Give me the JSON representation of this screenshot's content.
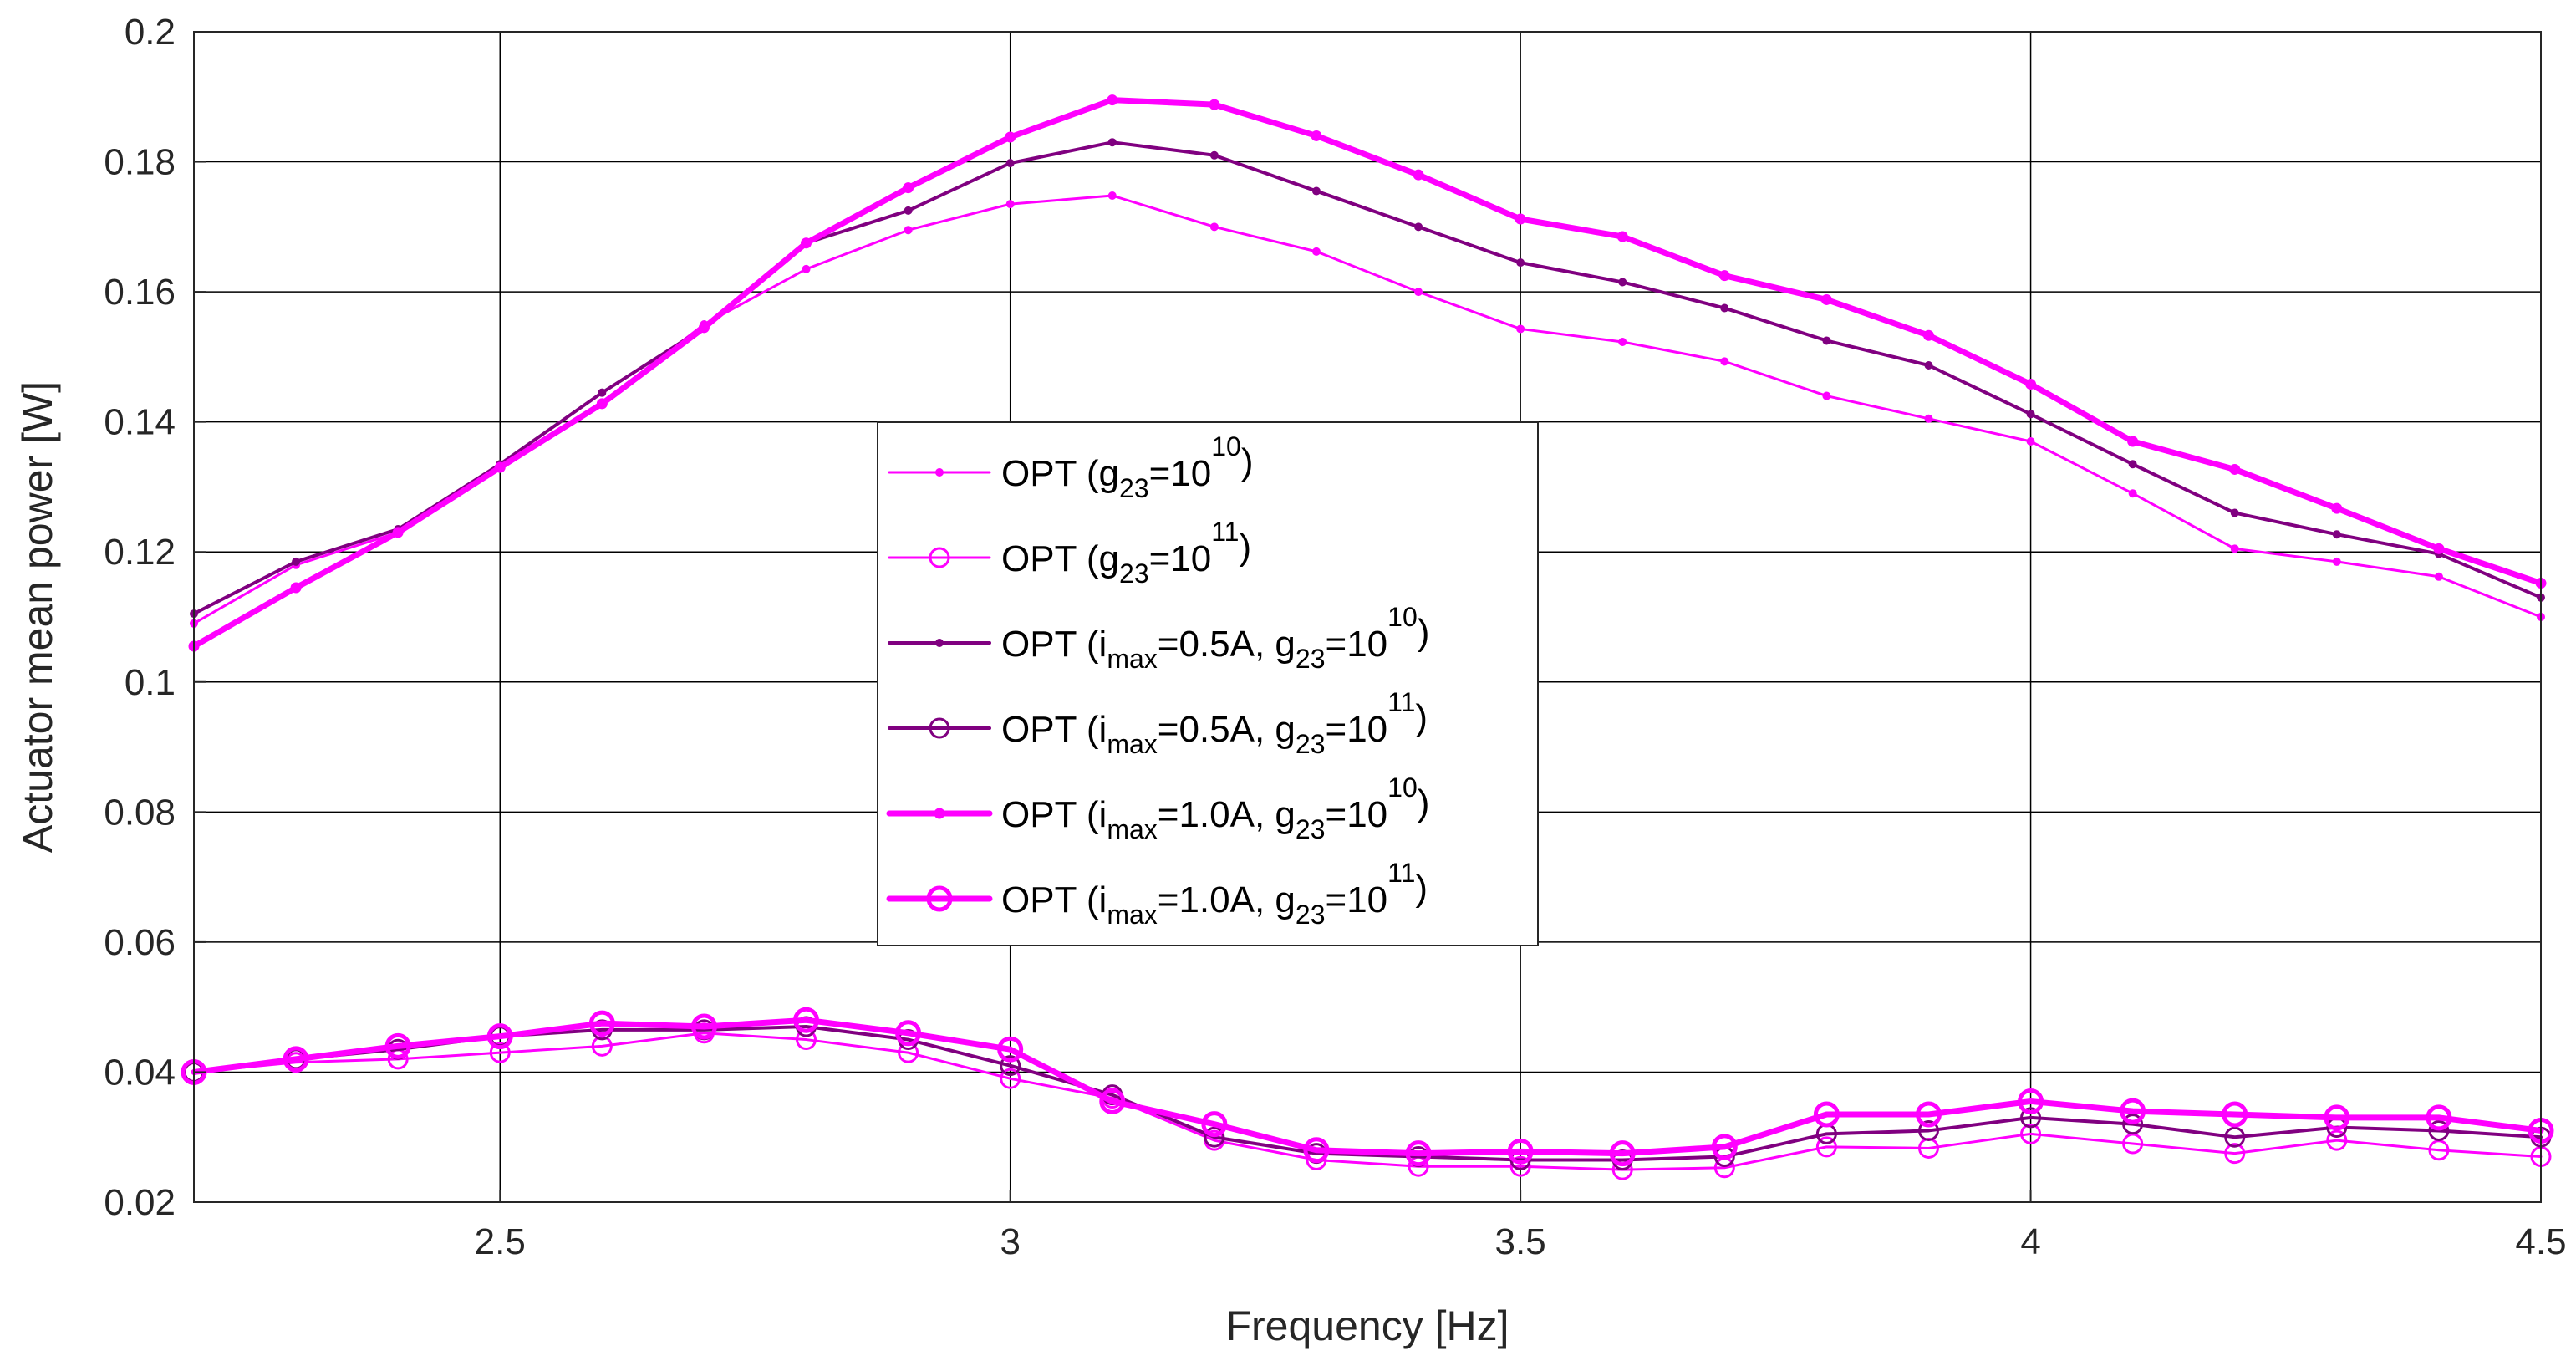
{
  "chart_data": {
    "type": "line",
    "title": "",
    "xlabel": "Frequency [Hz]",
    "ylabel": "Actuator mean power [W]",
    "xlim": [
      2.2,
      4.5
    ],
    "ylim": [
      0.02,
      0.2
    ],
    "grid": true,
    "legend_position": "center",
    "x": [
      2.2,
      2.3,
      2.4,
      2.5,
      2.6,
      2.7,
      2.8,
      2.9,
      3.0,
      3.1,
      3.2,
      3.3,
      3.4,
      3.5,
      3.6,
      3.7,
      3.8,
      3.9,
      4.0,
      4.1,
      4.2,
      4.3,
      4.4,
      4.5
    ],
    "xticks": [
      {
        "value": 2.5,
        "label": "2.5"
      },
      {
        "value": 3,
        "label": "3"
      },
      {
        "value": 3.5,
        "label": "3.5"
      },
      {
        "value": 4,
        "label": "4"
      },
      {
        "value": 4.5,
        "label": "4.5"
      }
    ],
    "yticks": [
      {
        "value": 0.02,
        "label": "0.02"
      },
      {
        "value": 0.04,
        "label": "0.04"
      },
      {
        "value": 0.06,
        "label": "0.06"
      },
      {
        "value": 0.08,
        "label": "0.08"
      },
      {
        "value": 0.1,
        "label": "0.1"
      },
      {
        "value": 0.12,
        "label": "0.12"
      },
      {
        "value": 0.14,
        "label": "0.14"
      },
      {
        "value": 0.16,
        "label": "0.16"
      },
      {
        "value": 0.18,
        "label": "0.18"
      },
      {
        "value": 0.2,
        "label": "0.2"
      }
    ],
    "series": [
      {
        "name": "OPT (g23=10^10)",
        "legend": {
          "pre": "OPT (g",
          "sub1": "23",
          "mid": "=10",
          "sup": "10",
          "post": ")"
        },
        "color": "#ff00ff",
        "linewidth": 3,
        "marker": "dot",
        "values": [
          0.109,
          0.118,
          0.123,
          0.133,
          0.143,
          0.155,
          0.1635,
          0.1695,
          0.1735,
          0.1748,
          0.17,
          0.1662,
          0.16,
          0.1543,
          0.1523,
          0.1493,
          0.144,
          0.1405,
          0.137,
          0.129,
          0.1205,
          0.1185,
          0.1162,
          0.11
        ]
      },
      {
        "name": "OPT (g23=10^11)",
        "legend": {
          "pre": "OPT (g",
          "sub1": "23",
          "mid": "=10",
          "sup": "11",
          "post": ")"
        },
        "color": "#ff00ff",
        "linewidth": 3,
        "marker": "circle",
        "values": [
          0.04,
          0.0415,
          0.042,
          0.043,
          0.044,
          0.046,
          0.045,
          0.043,
          0.039,
          0.036,
          0.0295,
          0.0265,
          0.0255,
          0.0255,
          0.025,
          0.0253,
          0.0285,
          0.0283,
          0.0305,
          0.029,
          0.0275,
          0.0295,
          0.028,
          0.027
        ]
      },
      {
        "name": "OPT (imax=0.5A, g23=10^10)",
        "legend": {
          "pre": "OPT (i",
          "sub1": "max",
          "mid": "=0.5A, g",
          "sub2": "23",
          "mid2": "=10",
          "sup": "10",
          "post": ")"
        },
        "color": "#800080",
        "linewidth": 4,
        "marker": "dot",
        "values": [
          0.1105,
          0.1185,
          0.1235,
          0.1335,
          0.1445,
          0.1545,
          0.1675,
          0.1725,
          0.1798,
          0.183,
          0.181,
          0.1755,
          0.17,
          0.1645,
          0.1615,
          0.1575,
          0.1525,
          0.1487,
          0.1412,
          0.1335,
          0.126,
          0.1227,
          0.1197,
          0.113
        ]
      },
      {
        "name": "OPT (imax=0.5A, g23=10^11)",
        "legend": {
          "pre": "OPT (i",
          "sub1": "max",
          "mid": "=0.5A, g",
          "sub2": "23",
          "mid2": "=10",
          "sup": "11",
          "post": ")"
        },
        "color": "#800080",
        "linewidth": 4,
        "marker": "circle",
        "values": [
          0.04,
          0.042,
          0.0435,
          0.0455,
          0.0465,
          0.0465,
          0.047,
          0.045,
          0.041,
          0.0365,
          0.03,
          0.0275,
          0.027,
          0.0265,
          0.0265,
          0.027,
          0.0305,
          0.031,
          0.033,
          0.032,
          0.03,
          0.0315,
          0.031,
          0.03
        ]
      },
      {
        "name": "OPT (imax=1.0A, g23=10^10)",
        "legend": {
          "pre": "OPT (i",
          "sub1": "max",
          "mid": "=1.0A, g",
          "sub2": "23",
          "mid2": "=10",
          "sup": "10",
          "post": ")"
        },
        "color": "#ff00ff",
        "linewidth": 7,
        "marker": "dot",
        "values": [
          0.1055,
          0.1145,
          0.123,
          0.133,
          0.1428,
          0.1545,
          0.1675,
          0.176,
          0.1838,
          0.1895,
          0.1888,
          0.184,
          0.178,
          0.1712,
          0.1685,
          0.1625,
          0.1588,
          0.1533,
          0.1458,
          0.137,
          0.1327,
          0.1267,
          0.1205,
          0.1152
        ]
      },
      {
        "name": "OPT (imax=1.0A, g23=10^11)",
        "legend": {
          "pre": "OPT (i",
          "sub1": "max",
          "mid": "=1.0A, g",
          "sub2": "23",
          "mid2": "=10",
          "sup": "11",
          "post": ")"
        },
        "color": "#ff00ff",
        "linewidth": 7,
        "marker": "circle",
        "values": [
          0.04,
          0.042,
          0.044,
          0.0455,
          0.0475,
          0.047,
          0.048,
          0.046,
          0.0435,
          0.0355,
          0.032,
          0.028,
          0.0275,
          0.0278,
          0.0275,
          0.0285,
          0.0335,
          0.0335,
          0.0355,
          0.034,
          0.0335,
          0.033,
          0.033,
          0.031
        ]
      }
    ]
  }
}
